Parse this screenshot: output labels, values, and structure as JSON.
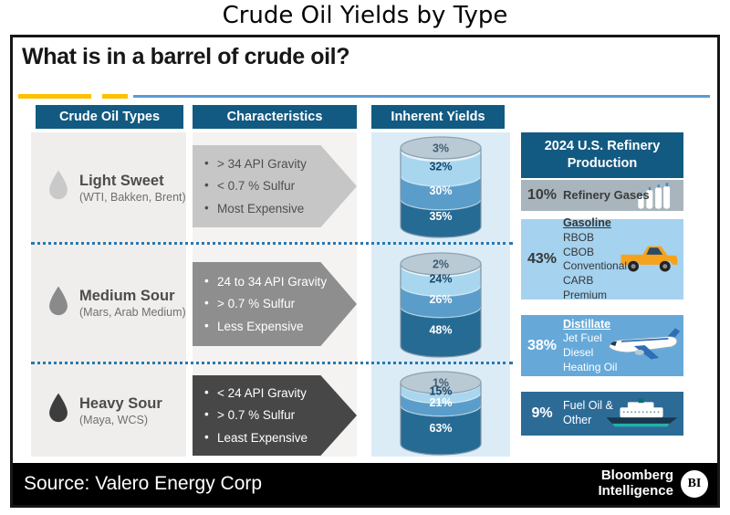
{
  "page_title": "Crude Oil Yields by Type",
  "headline": "What is in a barrel of crude oil?",
  "column_headers": {
    "types": "Crude Oil Types",
    "characteristics": "Characteristics",
    "yields": "Inherent Yields"
  },
  "crude_rows": [
    {
      "name": "Light Sweet",
      "examples": "(WTI, Bakken, Brent)",
      "characteristics": [
        "> 34 API Gravity",
        "< 0.7 % Sulfur",
        "Most Expensive"
      ],
      "yields": {
        "labels": [
          "3%",
          "32%",
          "30%",
          "35%"
        ],
        "values": [
          3,
          32,
          30,
          35
        ]
      }
    },
    {
      "name": "Medium Sour",
      "examples": "(Mars, Arab Medium)",
      "characteristics": [
        "24 to 34 API Gravity",
        "> 0.7 % Sulfur",
        "Less Expensive"
      ],
      "yields": {
        "labels": [
          "2%",
          "24%",
          "26%",
          "48%"
        ],
        "values": [
          2,
          24,
          26,
          48
        ]
      }
    },
    {
      "name": "Heavy Sour",
      "examples": "(Maya, WCS)",
      "characteristics": [
        "< 24 API Gravity",
        "> 0.7 % Sulfur",
        "Least Expensive"
      ],
      "yields": {
        "labels": [
          "1%",
          "15%",
          "21%",
          "63%"
        ],
        "values": [
          1,
          15,
          21,
          63
        ]
      }
    }
  ],
  "refinery_panel": {
    "title": "2024 U.S. Refinery Production",
    "rows": [
      {
        "pct": "10%",
        "label": "Refinery Gases",
        "icon": "gas-bottles-icon"
      },
      {
        "pct": "43%",
        "heading": "Gasoline",
        "items": [
          "RBOB",
          "CBOB",
          "Conventional",
          "CARB",
          "Premium"
        ],
        "icon": "pickup-truck-icon"
      },
      {
        "pct": "38%",
        "heading": "Distillate",
        "items": [
          "Jet Fuel",
          "Diesel",
          "Heating Oil"
        ],
        "icon": "airplane-icon"
      },
      {
        "pct": "9%",
        "label": "Fuel Oil & Other",
        "icon": "ship-icon"
      }
    ]
  },
  "footer": {
    "source": "Source: Valero Energy Corp",
    "brand_line1": "Bloomberg",
    "brand_line2": "Intelligence",
    "logo_text": "BI"
  },
  "colors": {
    "header_blue": "#125a82",
    "accent_yellow": "#ffc000",
    "divider_blue": "#5b9bd5",
    "dotted_blue": "#2878b0",
    "types_panel_bg": "#efeeec",
    "characteristics_panel_bg": "#f4f3f1",
    "yields_panel_bg": "#dcecf7",
    "arrow_light": "#c6c6c6",
    "arrow_medium": "#8e8e8e",
    "arrow_dark": "#474747",
    "barrel_top": "#b9cad5",
    "barrel_strip": "#e3edf4",
    "barrel_light": "#a9d6ef",
    "barrel_medium": "#5a9dca",
    "barrel_dark": "#266b94",
    "row_gray": "#a9b5bc",
    "row_light_blue": "#a4d2ef",
    "row_medium_blue": "#66a9d9",
    "row_dark_blue": "#2d6b97"
  },
  "chart_data": [
    {
      "type": "bar",
      "subtype": "stacked-cylinder",
      "title": "Inherent Yields",
      "unit": "%",
      "categories": [
        "Light Sweet (WTI, Bakken, Brent)",
        "Medium Sour (Mars, Arab Medium)",
        "Heavy Sour (Maya, WCS)"
      ],
      "stacks": [
        [
          3,
          32,
          30,
          35
        ],
        [
          2,
          24,
          26,
          48
        ],
        [
          1,
          15,
          21,
          63
        ]
      ],
      "legend": false
    },
    {
      "type": "bar",
      "title": "2024 U.S. Refinery Production",
      "unit": "%",
      "categories": [
        "Refinery Gases",
        "Gasoline",
        "Distillate",
        "Fuel Oil & Other"
      ],
      "values": [
        10,
        43,
        38,
        9
      ],
      "legend": false
    }
  ]
}
